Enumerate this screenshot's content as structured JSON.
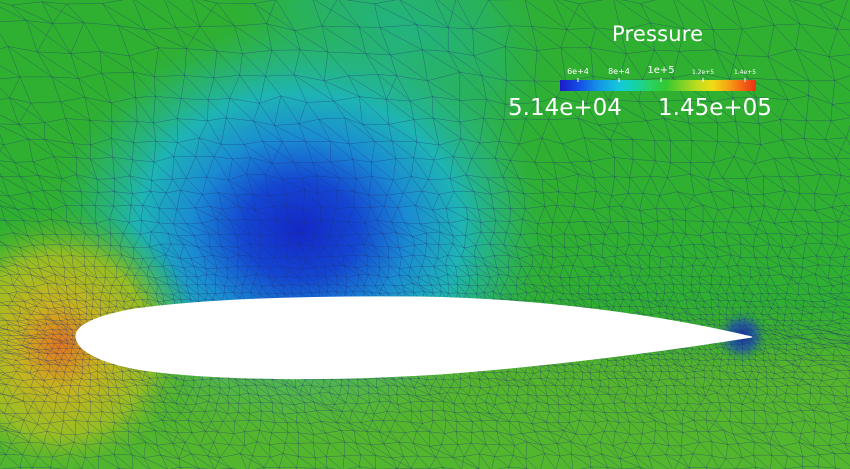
{
  "legend": {
    "title": "Pressure",
    "min_label": "5.14e+04",
    "max_label": "1.45e+05",
    "ticks": [
      "6e+4",
      "8e+4",
      "1e+5",
      "1.2e+5",
      "1.4e+5"
    ],
    "colormap": [
      "#1a1ac8",
      "#1496e6",
      "#14d2aa",
      "#32c832",
      "#bedc1e",
      "#f0dc14",
      "#f56414",
      "#e63214"
    ]
  },
  "colors": {
    "background_field": "#2fb030",
    "mesh_lines": "#1e3278",
    "airfoil": "#ffffff"
  }
}
